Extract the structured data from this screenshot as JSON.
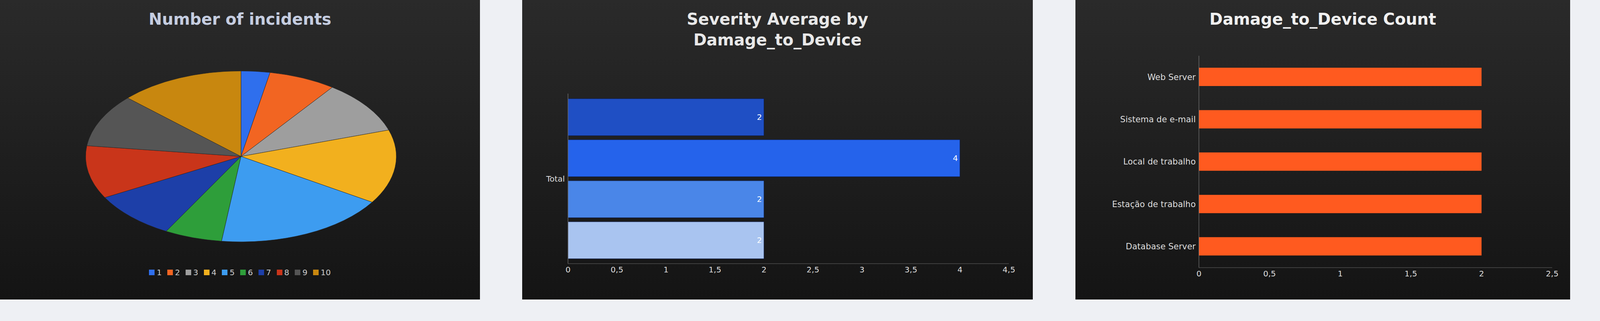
{
  "chart_data": [
    {
      "type": "pie",
      "title": "Number of incidents",
      "categories": [
        "1",
        "2",
        "3",
        "4",
        "5",
        "6",
        "7",
        "8",
        "9",
        "10"
      ],
      "values": [
        3,
        7,
        10,
        14,
        18,
        6,
        9,
        10,
        10,
        13
      ],
      "colors": [
        "#2f6fed",
        "#f26522",
        "#9e9e9e",
        "#f2b01e",
        "#3d9cf0",
        "#2e9e3a",
        "#1d3fa8",
        "#c9351a",
        "#555555",
        "#c8870f"
      ],
      "legend": "bottom"
    },
    {
      "type": "bar",
      "title": "Severity Average by Damage_to_Device",
      "categories": [
        "Total"
      ],
      "series": [
        {
          "color": "#1f4fc4",
          "values": [
            2
          ]
        },
        {
          "color": "#2563eb",
          "values": [
            4
          ]
        },
        {
          "color": "#4a86e8",
          "values": [
            2
          ]
        },
        {
          "color": "#a9c4f0",
          "values": [
            2
          ]
        }
      ],
      "orientation": "horizontal",
      "data_labels": true,
      "grid": false,
      "xlim": [
        0,
        4.5
      ],
      "xticks": [
        0,
        {
          "value": 0.5,
          "label": "0,5"
        },
        1,
        {
          "value": 1.5,
          "label": "1,5"
        },
        2,
        {
          "value": 2.5,
          "label": "2,5"
        },
        3,
        {
          "value": 3.5,
          "label": "3,5"
        },
        4,
        {
          "value": 4.5,
          "label": "4,5"
        }
      ]
    },
    {
      "type": "bar",
      "title": "Damage_to_Device Count",
      "categories": [
        "Web Server",
        "Sistema de e-mail",
        "Local de trabalho",
        "Estação de trabalho",
        "Database Server"
      ],
      "values": [
        2,
        2,
        2,
        2,
        2
      ],
      "color": "#ff5a1f",
      "orientation": "horizontal",
      "grid": false,
      "xlim": [
        0,
        2.5
      ],
      "xticks": [
        0,
        {
          "value": 0.5,
          "label": "0,5"
        },
        1,
        {
          "value": 1.5,
          "label": "1,5"
        },
        2,
        {
          "value": 2.5,
          "label": "2,5"
        }
      ]
    }
  ]
}
